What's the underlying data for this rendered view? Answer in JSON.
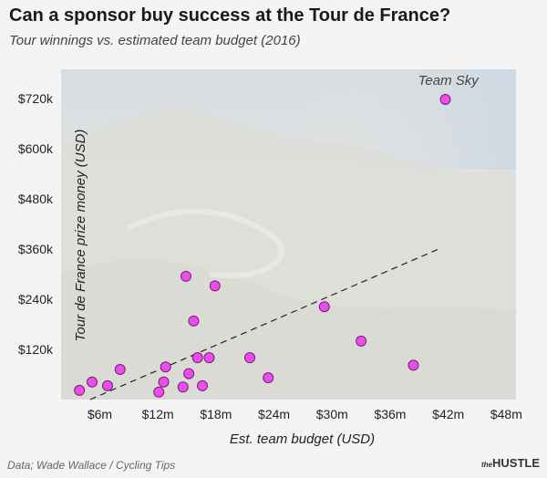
{
  "header": {
    "title": "Can a sponsor buy success at the Tour de France?",
    "subtitle": "Tour winnings vs. estimated team budget (2016)"
  },
  "footer": {
    "source": "Data; Wade Wallace / Cycling Tips",
    "logo_small": "the",
    "logo_main": "HUSTLE"
  },
  "colors": {
    "point_fill": "#e84fe8",
    "point_stroke": "#7a1a7a",
    "trendline": "#222222",
    "plot_bg_top": "#d7dde2",
    "plot_bg_bottom": "#e4e4e0"
  },
  "chart_data": {
    "type": "scatter",
    "title": "Can a sponsor buy success at the Tour de France?",
    "subtitle": "Tour winnings vs. estimated team budget (2016)",
    "xlabel": "Est. team budget (USD)",
    "ylabel": "Tour de France prize money (USD)",
    "xlim": [
      2,
      49
    ],
    "ylim": [
      0,
      790
    ],
    "x_ticks": [
      6,
      12,
      18,
      24,
      30,
      36,
      42,
      48
    ],
    "x_tick_labels": [
      "$6m",
      "$12m",
      "$18m",
      "$24m",
      "$30m",
      "$36m",
      "$42m",
      "$48m"
    ],
    "y_ticks": [
      120,
      240,
      360,
      480,
      600,
      720
    ],
    "y_tick_labels": [
      "$120k",
      "$240k",
      "$360k",
      "$480k",
      "$600k",
      "$720k"
    ],
    "grid": false,
    "trendline": {
      "style": "dashed",
      "x": [
        5,
        41
      ],
      "y": [
        0,
        360
      ]
    },
    "annotations": [
      {
        "text": "Team Sky",
        "x": 42,
        "y": 720
      }
    ],
    "points": [
      {
        "x": 3.9,
        "y": 22
      },
      {
        "x": 5.2,
        "y": 42
      },
      {
        "x": 6.8,
        "y": 33
      },
      {
        "x": 8.1,
        "y": 72
      },
      {
        "x": 12.1,
        "y": 18
      },
      {
        "x": 12.6,
        "y": 42
      },
      {
        "x": 12.8,
        "y": 78
      },
      {
        "x": 14.6,
        "y": 30
      },
      {
        "x": 14.9,
        "y": 295
      },
      {
        "x": 15.2,
        "y": 62
      },
      {
        "x": 15.7,
        "y": 188
      },
      {
        "x": 16.1,
        "y": 100
      },
      {
        "x": 16.6,
        "y": 33
      },
      {
        "x": 17.3,
        "y": 100
      },
      {
        "x": 17.9,
        "y": 272
      },
      {
        "x": 21.5,
        "y": 100
      },
      {
        "x": 23.4,
        "y": 52
      },
      {
        "x": 29.2,
        "y": 222
      },
      {
        "x": 33.0,
        "y": 140
      },
      {
        "x": 38.4,
        "y": 82
      },
      {
        "x": 41.7,
        "y": 718
      }
    ]
  }
}
